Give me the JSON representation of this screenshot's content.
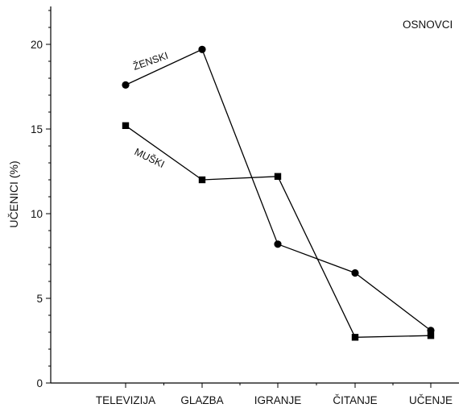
{
  "chart_data": {
    "type": "line",
    "title": "",
    "xlabel": "",
    "ylabel": "UČENICI (%)",
    "ylim": [
      0,
      22
    ],
    "yticks": [
      0,
      5,
      10,
      15,
      20
    ],
    "ytick_labels": [
      "0",
      "5",
      "10",
      "15",
      "20"
    ],
    "categories": [
      "TELEVIZIJA",
      "GLAZBA",
      "IGRANJE",
      "ČITANJE",
      "UČENJE"
    ],
    "annotation": "OSNOVCI",
    "grid": false,
    "series": [
      {
        "name": "ŽENSKI",
        "marker": "circle",
        "color": "#000000",
        "values": [
          17.6,
          19.7,
          8.2,
          6.5,
          3.1
        ]
      },
      {
        "name": "MUŠKI",
        "marker": "square",
        "color": "#000000",
        "values": [
          15.2,
          12.0,
          12.2,
          2.7,
          2.8
        ]
      }
    ]
  }
}
